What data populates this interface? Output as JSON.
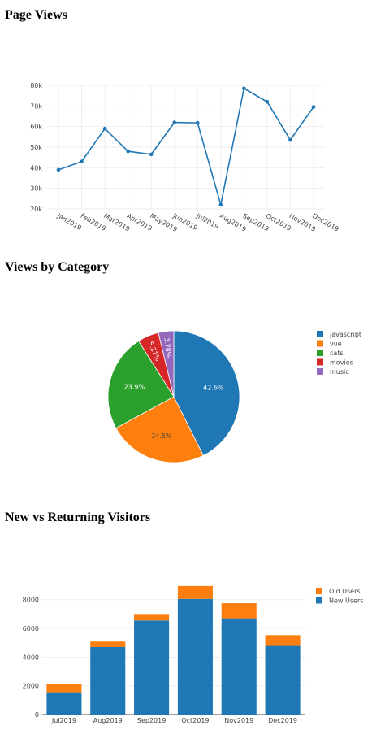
{
  "sections": {
    "page_views_title": "Page Views",
    "category_title": "Views by Category",
    "visitors_title": "New vs Returning Visitors"
  },
  "chart_data": [
    {
      "type": "line",
      "title": "Page Views",
      "x": [
        "Jan2019",
        "Feb2019",
        "Mar2019",
        "Apr2019",
        "May2019",
        "Jun2019",
        "Jul2019",
        "Aug2019",
        "Sep2019",
        "Oct2019",
        "Nov2019",
        "Dec2019"
      ],
      "values": [
        39000,
        43000,
        59000,
        48000,
        46500,
        62000,
        61800,
        22000,
        78500,
        72000,
        53500,
        69500
      ],
      "ylim": [
        20000,
        80000
      ],
      "yticks": [
        "20k",
        "30k",
        "40k",
        "50k",
        "60k",
        "70k",
        "80k"
      ],
      "color": "#1f77b4",
      "grid": true
    },
    {
      "type": "pie",
      "title": "Views by Category",
      "labels": [
        "javascript",
        "vue",
        "cats",
        "movies",
        "music"
      ],
      "values": [
        42.6,
        24.5,
        23.9,
        5.21,
        3.78
      ],
      "slice_labels": [
        "42.6%",
        "24.5%",
        "23.9%",
        "5.21%",
        "3.78%"
      ],
      "colors": [
        "#1f77b4",
        "#ff7f0e",
        "#2ca02c",
        "#d62728",
        "#9467bd"
      ],
      "legend": "right"
    },
    {
      "type": "bar",
      "stacked": true,
      "title": "New vs Returning Visitors",
      "categories": [
        "Jul2019",
        "Aug2019",
        "Sep2019",
        "Oct2019",
        "Nov2019",
        "Dec2019"
      ],
      "series": [
        {
          "name": "New Users",
          "values": [
            1550,
            4700,
            6550,
            8050,
            6700,
            4780
          ],
          "color": "#1f77b4"
        },
        {
          "name": "Old Users",
          "values": [
            550,
            380,
            450,
            900,
            1050,
            750
          ],
          "color": "#ff7f0e"
        }
      ],
      "legend_order": [
        "Old Users",
        "New Users"
      ],
      "ylim": [
        0,
        9000
      ],
      "yticks": [
        "0",
        "2000",
        "4000",
        "6000",
        "8000"
      ],
      "legend": "top-right",
      "grid": true
    }
  ]
}
